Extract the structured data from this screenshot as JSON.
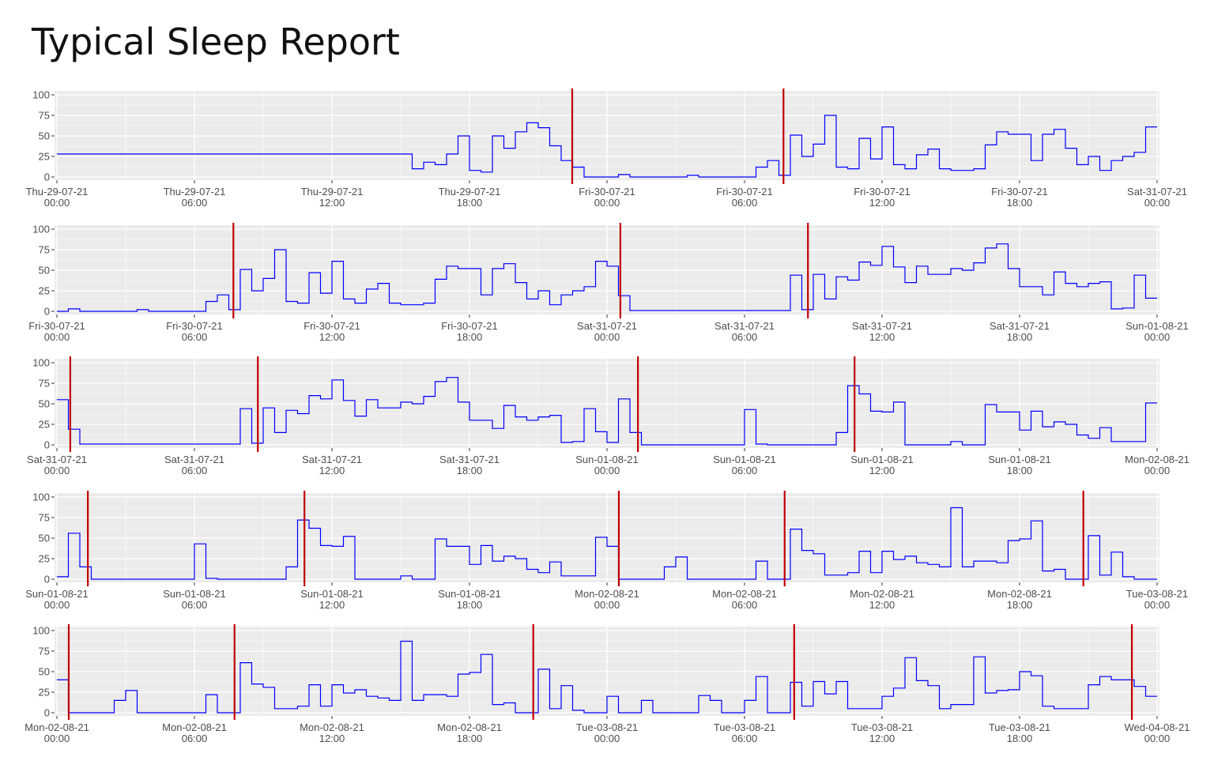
{
  "title": "Typical Sleep Report",
  "chart_data": {
    "type": "line",
    "title": "Typical Sleep Report",
    "xlabel": "",
    "ylabel": "",
    "ylim": [
      0,
      100
    ],
    "yticks": [
      "0",
      "25",
      "50",
      "75",
      "100"
    ],
    "grid": true,
    "colors": {
      "series": "#0000ff",
      "event_line": "#c00000",
      "panel_bg": "#ebebeb",
      "grid": "#ffffff"
    },
    "series_start": "2021-07-29T00:00",
    "interval_minutes": 30,
    "series": [
      {
        "day": "Thu-29-07-21",
        "values": [
          28,
          28,
          28,
          28,
          28,
          28,
          28,
          28,
          28,
          28,
          28,
          28,
          28,
          28,
          28,
          28,
          28,
          28,
          28,
          28,
          28,
          28,
          28,
          28,
          28,
          28,
          28,
          28,
          28,
          28,
          28,
          10,
          18,
          15,
          28,
          50,
          8,
          6,
          50,
          35,
          55,
          66,
          60,
          38,
          20,
          12,
          0,
          0
        ]
      },
      {
        "day": "Fri-30-07-21",
        "values": [
          0,
          3,
          0,
          0,
          0,
          0,
          0,
          2,
          0,
          0,
          0,
          0,
          0,
          12,
          20,
          2,
          51,
          25,
          40,
          75,
          12,
          10,
          47,
          22,
          61,
          15,
          10,
          27,
          34,
          10,
          8,
          8,
          10,
          39,
          55,
          52,
          52,
          20,
          52,
          58,
          35,
          15,
          25,
          8,
          20,
          25,
          30,
          61
        ]
      },
      {
        "day": "Sat-31-07-21",
        "values": [
          55,
          19,
          1,
          1,
          1,
          1,
          1,
          1,
          1,
          1,
          1,
          1,
          1,
          1,
          1,
          1,
          44,
          2,
          45,
          15,
          42,
          38,
          60,
          56,
          79,
          54,
          35,
          55,
          45,
          45,
          52,
          50,
          59,
          77,
          82,
          52,
          30,
          30,
          20,
          48,
          34,
          30,
          34,
          36,
          3,
          4,
          44,
          16
        ]
      },
      {
        "day": "Sun-01-08-21",
        "values": [
          3,
          56,
          15,
          0,
          0,
          0,
          0,
          0,
          0,
          0,
          0,
          0,
          43,
          1,
          0,
          0,
          0,
          0,
          0,
          0,
          15,
          72,
          62,
          41,
          40,
          52,
          0,
          0,
          0,
          0,
          4,
          0,
          0,
          49,
          40,
          40,
          18,
          41,
          22,
          28,
          25,
          12,
          8,
          21,
          4,
          4,
          4,
          51
        ]
      },
      {
        "day": "Mon-02-08-21",
        "values": [
          40,
          0,
          0,
          0,
          0,
          15,
          27,
          0,
          0,
          0,
          0,
          0,
          0,
          22,
          0,
          0,
          61,
          35,
          31,
          5,
          5,
          8,
          34,
          8,
          34,
          24,
          28,
          20,
          18,
          15,
          87,
          15,
          22,
          22,
          20,
          47,
          49,
          71,
          10,
          12,
          0,
          0,
          53,
          5,
          33,
          3,
          0,
          0
        ]
      },
      {
        "day": "Tue-03-08-21",
        "values": [
          20,
          0,
          0,
          15,
          0,
          0,
          0,
          0,
          21,
          15,
          0,
          0,
          15,
          44,
          0,
          0,
          37,
          8,
          38,
          23,
          38,
          5,
          5,
          5,
          20,
          30,
          67,
          39,
          33,
          5,
          10,
          10,
          68,
          24,
          27,
          28,
          50,
          45,
          8,
          5,
          5,
          5,
          34,
          44,
          40,
          40,
          32,
          20
        ]
      }
    ],
    "event_lines": [
      "2021-07-29T22:29",
      "2021-07-30T07:42",
      "2021-07-31T00:35",
      "2021-07-31T08:46",
      "2021-08-01T01:21",
      "2021-08-01T10:48",
      "2021-08-02T00:31",
      "2021-08-02T07:45",
      "2021-08-02T20:47",
      "2021-08-03T08:10",
      "2021-08-03T22:54"
    ],
    "panels": [
      {
        "ticks": [
          [
            "Thu-29-07-21",
            "00:00"
          ],
          [
            "Thu-29-07-21",
            "06:00"
          ],
          [
            "Thu-29-07-21",
            "12:00"
          ],
          [
            "Thu-29-07-21",
            "18:00"
          ],
          [
            "Fri-30-07-21",
            "00:00"
          ],
          [
            "Fri-30-07-21",
            "06:00"
          ],
          [
            "Fri-30-07-21",
            "12:00"
          ],
          [
            "Fri-30-07-21",
            "18:00"
          ],
          [
            "Sat-31-07-21",
            "00:00"
          ]
        ]
      },
      {
        "ticks": [
          [
            "Fri-30-07-21",
            "00:00"
          ],
          [
            "Fri-30-07-21",
            "06:00"
          ],
          [
            "Fri-30-07-21",
            "12:00"
          ],
          [
            "Fri-30-07-21",
            "18:00"
          ],
          [
            "Sat-31-07-21",
            "00:00"
          ],
          [
            "Sat-31-07-21",
            "06:00"
          ],
          [
            "Sat-31-07-21",
            "12:00"
          ],
          [
            "Sat-31-07-21",
            "18:00"
          ],
          [
            "Sun-01-08-21",
            "00:00"
          ]
        ]
      },
      {
        "ticks": [
          [
            "Sat-31-07-21",
            "00:00"
          ],
          [
            "Sat-31-07-21",
            "06:00"
          ],
          [
            "Sat-31-07-21",
            "12:00"
          ],
          [
            "Sat-31-07-21",
            "18:00"
          ],
          [
            "Sun-01-08-21",
            "00:00"
          ],
          [
            "Sun-01-08-21",
            "06:00"
          ],
          [
            "Sun-01-08-21",
            "12:00"
          ],
          [
            "Sun-01-08-21",
            "18:00"
          ],
          [
            "Mon-02-08-21",
            "00:00"
          ]
        ]
      },
      {
        "ticks": [
          [
            "Sun-01-08-21",
            "00:00"
          ],
          [
            "Sun-01-08-21",
            "06:00"
          ],
          [
            "Sun-01-08-21",
            "12:00"
          ],
          [
            "Sun-01-08-21",
            "18:00"
          ],
          [
            "Mon-02-08-21",
            "00:00"
          ],
          [
            "Mon-02-08-21",
            "06:00"
          ],
          [
            "Mon-02-08-21",
            "12:00"
          ],
          [
            "Mon-02-08-21",
            "18:00"
          ],
          [
            "Tue-03-08-21",
            "00:00"
          ]
        ]
      },
      {
        "ticks": [
          [
            "Mon-02-08-21",
            "00:00"
          ],
          [
            "Mon-02-08-21",
            "06:00"
          ],
          [
            "Mon-02-08-21",
            "12:00"
          ],
          [
            "Mon-02-08-21",
            "18:00"
          ],
          [
            "Tue-03-08-21",
            "00:00"
          ],
          [
            "Tue-03-08-21",
            "06:00"
          ],
          [
            "Tue-03-08-21",
            "12:00"
          ],
          [
            "Tue-03-08-21",
            "18:00"
          ],
          [
            "Wed-04-08-21",
            "00:00"
          ]
        ]
      }
    ]
  }
}
